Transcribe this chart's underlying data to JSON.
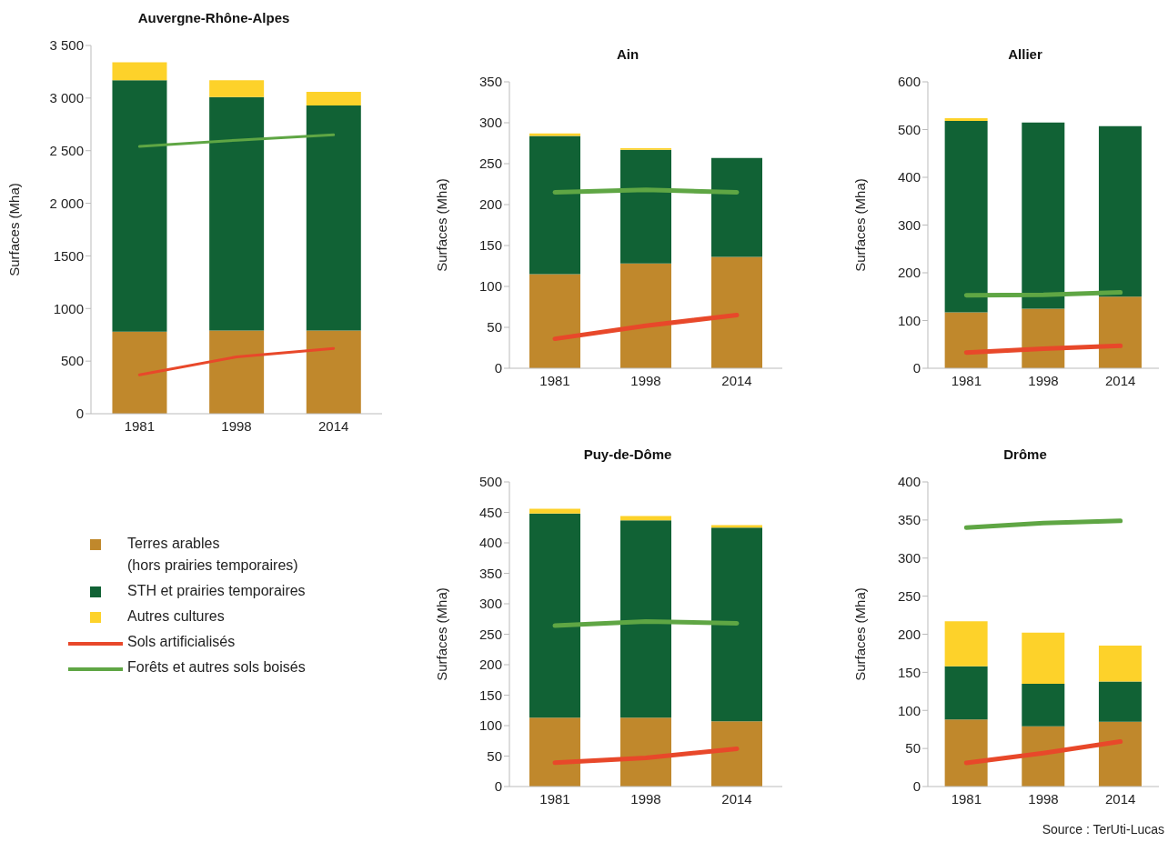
{
  "chart_data": [
    {
      "type": "bar",
      "title": "Auvergne-Rhône-Alpes",
      "ylabel": "Surfaces (Mha)",
      "categories": [
        "1981",
        "1998",
        "2014"
      ],
      "stacked": true,
      "legend": "bottom",
      "ylim": [
        0,
        3500
      ],
      "yticks": [
        0,
        500,
        1000,
        1500,
        {
          "value": 2000,
          "label": "2 000"
        },
        {
          "value": 2500,
          "label": "2 500"
        },
        {
          "value": 3000,
          "label": "3 000"
        },
        {
          "value": 3500,
          "label": "3 500"
        }
      ],
      "series": [
        {
          "name": "Terres arables\n(hors prairies temporaires)",
          "color": "#c0882c",
          "values": [
            780,
            790,
            790
          ]
        },
        {
          "name": "STH et prairies temporaires",
          "color": "#116235",
          "values": [
            2390,
            2220,
            2140
          ]
        },
        {
          "name": "Autres cultures",
          "color": "#fdd22a",
          "values": [
            170,
            160,
            130
          ]
        },
        {
          "name": "Sols artificialisés",
          "type": "line",
          "color": "#e8482a",
          "values": [
            370,
            540,
            620
          ]
        },
        {
          "name": "Forêts et autres sols boisés",
          "type": "line",
          "color": "#5fa644",
          "values": [
            2540,
            2600,
            2650
          ]
        }
      ]
    },
    {
      "type": "bar",
      "title": "Ain",
      "ylabel": "Surfaces (Mha)",
      "categories": [
        "1981",
        "1998",
        "2014"
      ],
      "stacked": true,
      "ylim": [
        0,
        350
      ],
      "yticks": [
        0,
        50,
        100,
        150,
        200,
        250,
        300,
        350
      ],
      "series": [
        {
          "color": "#c0882c",
          "values": [
            115,
            128,
            136
          ]
        },
        {
          "color": "#116235",
          "values": [
            169,
            139,
            121
          ]
        },
        {
          "color": "#fdd22a",
          "values": [
            3,
            2,
            0
          ]
        },
        {
          "type": "line",
          "color": "#e8482a",
          "values": [
            36,
            52,
            65
          ]
        },
        {
          "type": "line",
          "color": "#5fa644",
          "values": [
            215,
            218,
            215
          ]
        }
      ]
    },
    {
      "type": "bar",
      "title": "Allier",
      "ylabel": "Surfaces (Mha)",
      "categories": [
        "1981",
        "1998",
        "2014"
      ],
      "stacked": true,
      "ylim": [
        0,
        600
      ],
      "yticks": [
        0,
        100,
        200,
        300,
        400,
        500,
        600
      ],
      "series": [
        {
          "color": "#c0882c",
          "values": [
            117,
            125,
            150
          ]
        },
        {
          "color": "#116235",
          "values": [
            401,
            390,
            357
          ]
        },
        {
          "color": "#fdd22a",
          "values": [
            6,
            0,
            0
          ]
        },
        {
          "type": "line",
          "color": "#e8482a",
          "values": [
            33,
            41,
            47
          ]
        },
        {
          "type": "line",
          "color": "#5fa644",
          "values": [
            153,
            154,
            159
          ]
        }
      ]
    },
    {
      "type": "bar",
      "title": "Puy-de-Dôme",
      "ylabel": "Surfaces (Mha)",
      "categories": [
        "1981",
        "1998",
        "2014"
      ],
      "stacked": true,
      "ylim": [
        0,
        500
      ],
      "yticks": [
        0,
        50,
        100,
        150,
        200,
        250,
        300,
        350,
        400,
        450,
        500
      ],
      "series": [
        {
          "color": "#c0882c",
          "values": [
            113,
            113,
            107
          ]
        },
        {
          "color": "#116235",
          "values": [
            335,
            324,
            318
          ]
        },
        {
          "color": "#fdd22a",
          "values": [
            8,
            7,
            4
          ]
        },
        {
          "type": "line",
          "color": "#e8482a",
          "values": [
            39,
            47,
            62
          ]
        },
        {
          "type": "line",
          "color": "#5fa644",
          "values": [
            264,
            271,
            268
          ]
        }
      ]
    },
    {
      "type": "bar",
      "title": "Drôme",
      "ylabel": "Surfaces (Mha)",
      "categories": [
        "1981",
        "1998",
        "2014"
      ],
      "stacked": true,
      "ylim": [
        0,
        400
      ],
      "yticks": [
        0,
        50,
        100,
        150,
        200,
        250,
        300,
        350,
        400
      ],
      "annotations": [
        "Source : TerUti-Lucas"
      ],
      "series": [
        {
          "color": "#c0882c",
          "values": [
            88,
            79,
            85
          ]
        },
        {
          "color": "#116235",
          "values": [
            70,
            56,
            53
          ]
        },
        {
          "color": "#fdd22a",
          "values": [
            59,
            67,
            47
          ]
        },
        {
          "type": "line",
          "color": "#e8482a",
          "values": [
            31,
            44,
            59
          ]
        },
        {
          "type": "line",
          "color": "#5fa644",
          "values": [
            340,
            346,
            349
          ]
        }
      ]
    }
  ]
}
